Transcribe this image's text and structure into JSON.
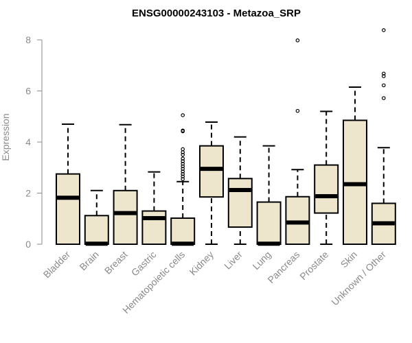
{
  "chart_data": {
    "type": "boxplot",
    "title": "ENSG00000243103 - Metazoa_SRP",
    "xlabel": "",
    "ylabel": "Expression",
    "ylim": [
      0,
      8.4
    ],
    "yticks": [
      0,
      2,
      4,
      6,
      8
    ],
    "grid": false,
    "colors": {
      "box_fill": "#ede6cc",
      "stroke": "#000000",
      "axis_text": "#8a8a8a"
    },
    "categories": [
      "Bladder",
      "Brain",
      "Breast",
      "Gastric",
      "Hematopoietic cells",
      "Kidney",
      "Liver",
      "Lung",
      "Pancreas",
      "Prostate",
      "Skin",
      "Unknown / Other"
    ],
    "boxes": [
      {
        "category": "Bladder",
        "min": 0,
        "q1": 0,
        "median": 1.82,
        "q3": 2.75,
        "max": 4.7,
        "outliers": []
      },
      {
        "category": "Brain",
        "min": 0,
        "q1": 0,
        "median": 0.02,
        "q3": 1.12,
        "max": 2.1,
        "outliers": []
      },
      {
        "category": "Breast",
        "min": 0,
        "q1": 0,
        "median": 1.22,
        "q3": 2.1,
        "max": 4.68,
        "outliers": []
      },
      {
        "category": "Gastric",
        "min": 0,
        "q1": 0,
        "median": 1.02,
        "q3": 1.3,
        "max": 2.83,
        "outliers": []
      },
      {
        "category": "Hematopoietic cells",
        "min": 0,
        "q1": 0,
        "median": 0.02,
        "q3": 1.02,
        "max": 2.45,
        "outliers": [
          2.55,
          2.65,
          2.75,
          2.85,
          2.95,
          3.05,
          3.15,
          3.25,
          3.35,
          3.5,
          3.6,
          3.72,
          4.42,
          4.45,
          5.05
        ]
      },
      {
        "category": "Kidney",
        "min": 0,
        "q1": 1.85,
        "median": 2.95,
        "q3": 3.85,
        "max": 4.78,
        "outliers": []
      },
      {
        "category": "Liver",
        "min": 0,
        "q1": 0.67,
        "median": 2.12,
        "q3": 2.57,
        "max": 4.2,
        "outliers": []
      },
      {
        "category": "Lung",
        "min": 0,
        "q1": 0,
        "median": 0.02,
        "q3": 1.65,
        "max": 3.85,
        "outliers": []
      },
      {
        "category": "Pancreas",
        "min": 0,
        "q1": 0,
        "median": 0.85,
        "q3": 1.86,
        "max": 2.92,
        "outliers": [
          5.22,
          7.98
        ]
      },
      {
        "category": "Prostate",
        "min": 0,
        "q1": 1.22,
        "median": 1.88,
        "q3": 3.1,
        "max": 5.2,
        "outliers": []
      },
      {
        "category": "Skin",
        "min": 0,
        "q1": 0,
        "median": 2.35,
        "q3": 4.85,
        "max": 6.15,
        "outliers": []
      },
      {
        "category": "Unknown / Other",
        "min": 0,
        "q1": 0,
        "median": 0.82,
        "q3": 1.6,
        "max": 3.78,
        "outliers": [
          5.72,
          6.22,
          6.58,
          6.68,
          8.38
        ]
      }
    ]
  }
}
